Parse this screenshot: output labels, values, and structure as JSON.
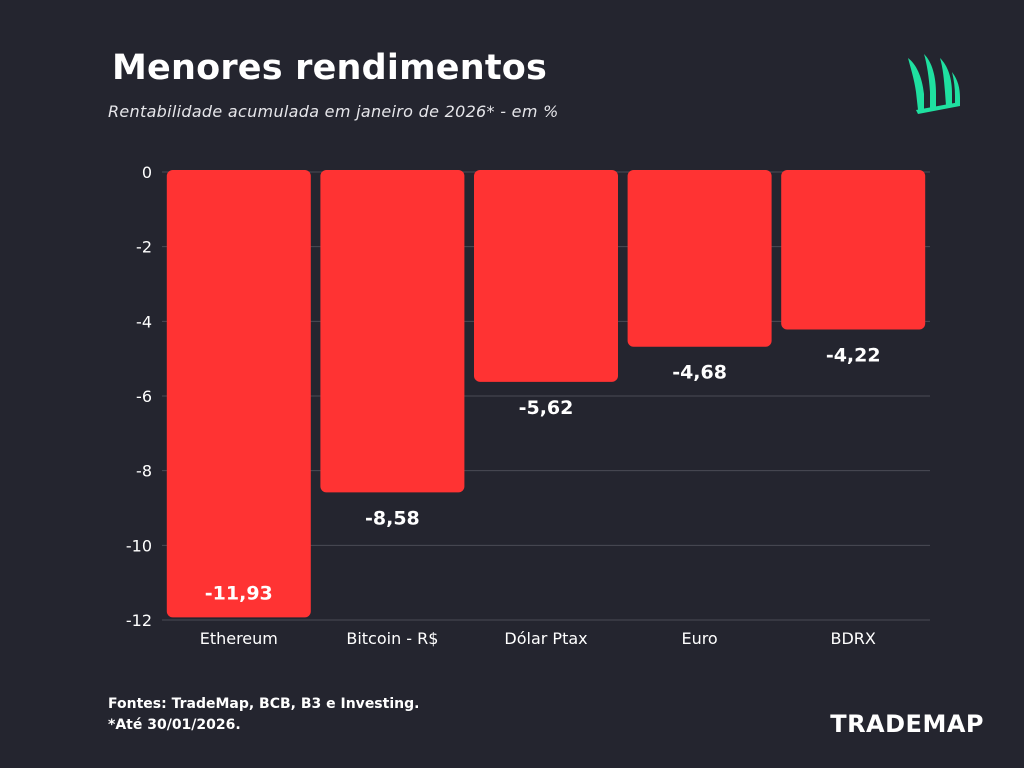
{
  "header": {
    "title": "Menores rendimentos",
    "subtitle": "Rentabilidade acumulada em janeiro de 2026* - em %"
  },
  "footer": {
    "source": "Fontes: TradeMap, BCB, B3 e Investing.",
    "note": "*Até 30/01/2026."
  },
  "brand": {
    "name": "TRADEMAP",
    "logo_icon": "trademap-leaf-icon",
    "logo_color": "#1fe0a0"
  },
  "chart_data": {
    "type": "bar",
    "categories": [
      "Ethereum",
      "Bitcoin - R$",
      "Dólar Ptax",
      "Euro",
      "BDRX"
    ],
    "values": [
      -11.93,
      -8.58,
      -5.62,
      -4.68,
      -4.22
    ],
    "value_labels": [
      "-11,93",
      "-8,58",
      "-5,62",
      "-4,68",
      "-4,22"
    ],
    "ylim": [
      -12,
      0
    ],
    "yticks": [
      0,
      -2,
      -4,
      -6,
      -8,
      -10,
      -12
    ],
    "grid": true,
    "bar_color": "#ff3333",
    "title": "Menores rendimentos",
    "xlabel": "",
    "ylabel": ""
  }
}
